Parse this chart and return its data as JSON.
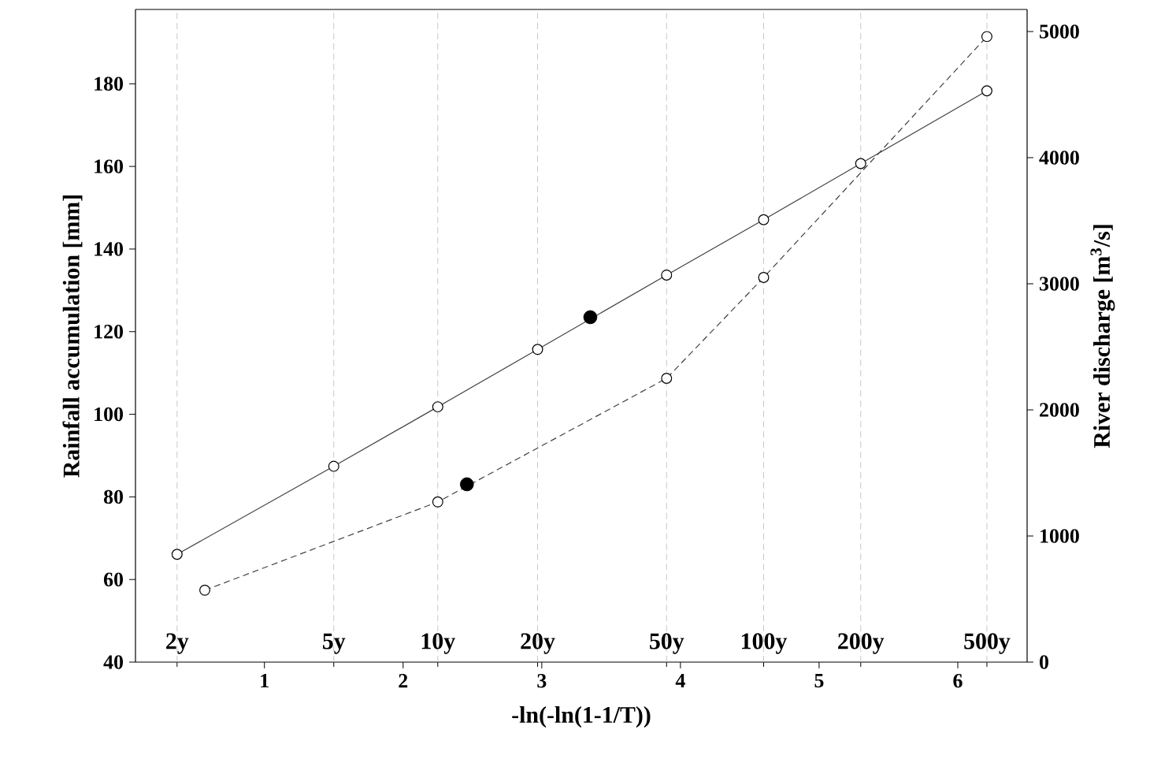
{
  "chart_data": {
    "type": "line",
    "xlabel": "-ln(-ln(1-1/T))",
    "ylabel": "Rainfall accumulation [mm]",
    "y2label": "River discharge [m$^{3}$/s]",
    "xlim": [
      0.07,
      6.5
    ],
    "xticks": [
      1,
      2,
      3,
      4,
      5,
      6
    ],
    "ylim": [
      40,
      198
    ],
    "yticks": [
      40,
      60,
      80,
      100,
      120,
      140,
      160,
      180
    ],
    "y2lim": [
      0,
      5175
    ],
    "y2ticks": [
      0,
      1000,
      2000,
      3000,
      4000,
      5000
    ],
    "marker": "circle",
    "series": [
      {
        "axis": "y",
        "color": "#404040",
        "line_style": "solid",
        "x": [
          0.37,
          1.5,
          2.25,
          2.97,
          3.9,
          4.6,
          5.3,
          6.21
        ],
        "values": [
          66.1,
          87.4,
          101.8,
          115.7,
          133.7,
          147.1,
          160.7,
          178.3
        ]
      },
      {
        "axis": "y2",
        "color": "#404040",
        "line_style": "dashed",
        "x": [
          0.57,
          2.25,
          3.9,
          4.6,
          6.21
        ],
        "values": [
          570,
          1270,
          2250,
          3050,
          4960
        ]
      },
      {
        "type": "scatter",
        "axis": "y",
        "color": "#000000",
        "x": [
          3.35
        ],
        "values": [
          123.5
        ]
      },
      {
        "type": "scatter",
        "axis": "y2",
        "color": "#000000",
        "x": [
          2.46
        ],
        "values": [
          1410
        ]
      }
    ],
    "ref_lines": [
      {
        "axis": "x",
        "value": 0.37,
        "label": "2y",
        "color": "#c8c8c8",
        "line_style": "dashed"
      },
      {
        "axis": "x",
        "value": 1.5,
        "label": "5y",
        "color": "#c8c8c8",
        "line_style": "dashed"
      },
      {
        "axis": "x",
        "value": 2.25,
        "label": "10y",
        "color": "#c8c8c8",
        "line_style": "dashed"
      },
      {
        "axis": "x",
        "value": 2.97,
        "label": "20y",
        "color": "#c8c8c8",
        "line_style": "dashed"
      },
      {
        "axis": "x",
        "value": 3.9,
        "label": "50y",
        "color": "#c8c8c8",
        "line_style": "dashed"
      },
      {
        "axis": "x",
        "value": 4.6,
        "label": "100y",
        "color": "#c8c8c8",
        "line_style": "dashed"
      },
      {
        "axis": "x",
        "value": 5.3,
        "label": "200y",
        "color": "#c8c8c8",
        "line_style": "dashed"
      },
      {
        "axis": "x",
        "value": 6.21,
        "label": "500y",
        "color": "#c8c8c8",
        "line_style": "dashed"
      }
    ]
  }
}
